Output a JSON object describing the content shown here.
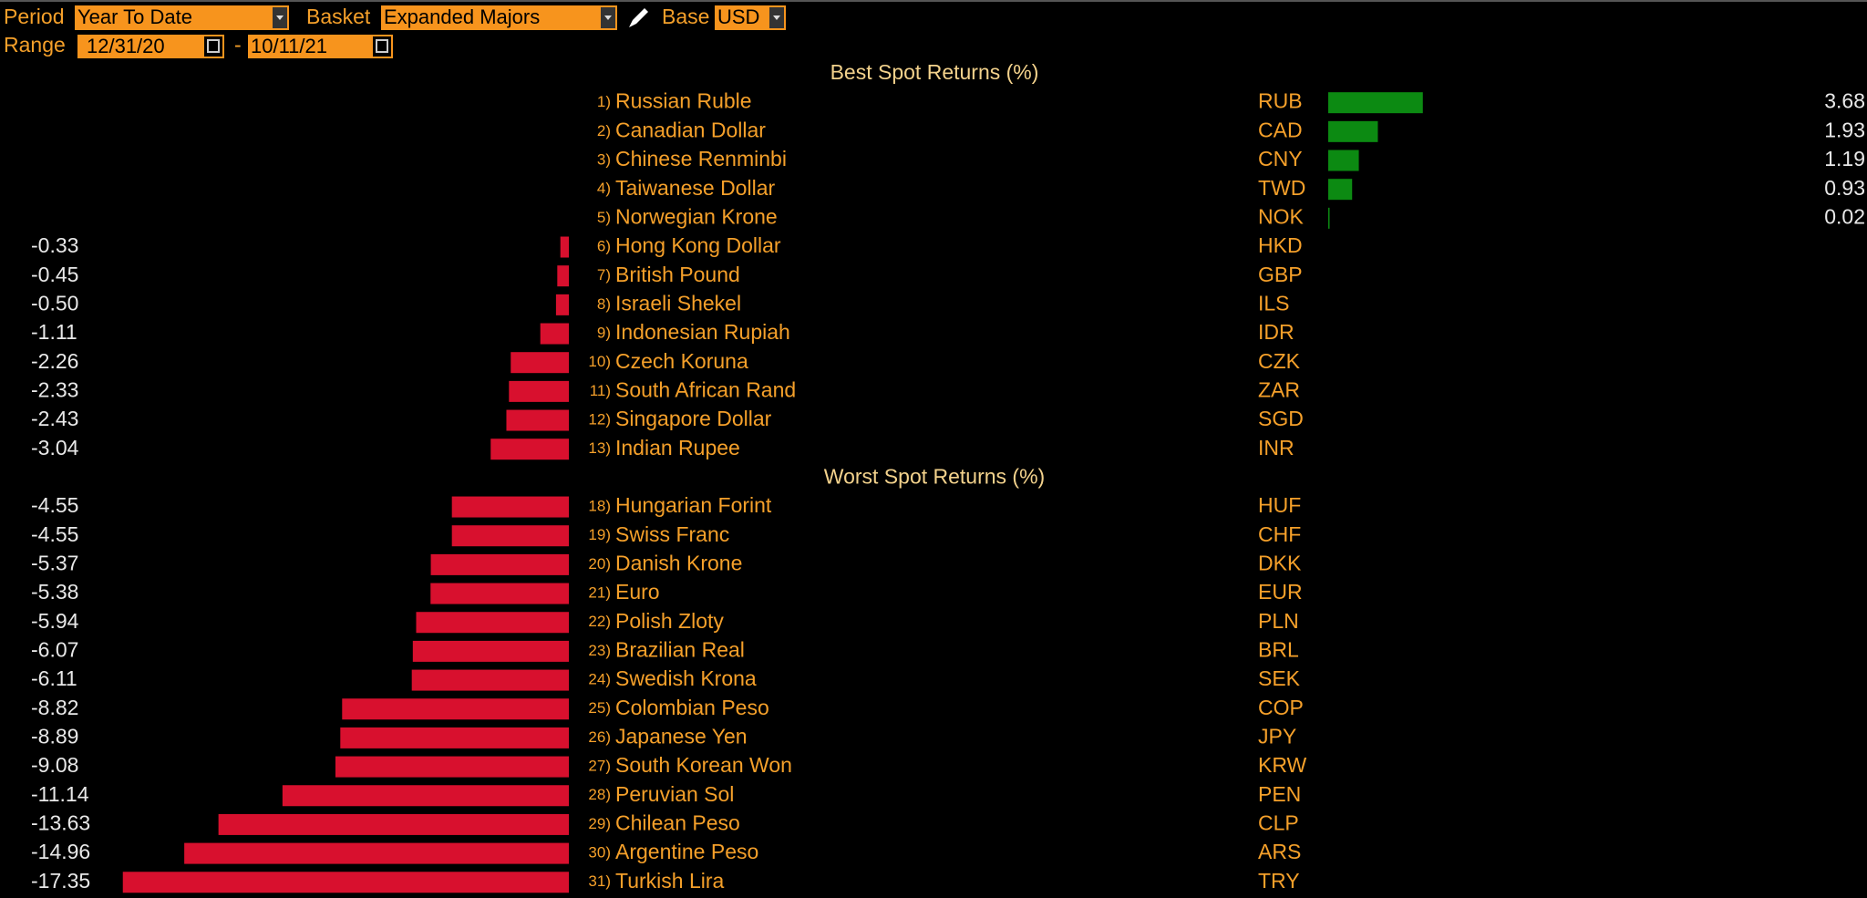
{
  "controls": {
    "period_label": "Period",
    "period": "Year To Date",
    "basket_label": "Basket",
    "basket": "Expanded Majors",
    "base_label": "Base",
    "base": "USD",
    "range_label": "Range",
    "start": "12/31/20",
    "separator": "-",
    "end": "10/11/21"
  },
  "sections": [
    {
      "title": "Best Spot Returns (%)",
      "rows": [
        {
          "rank": "1)",
          "name": "Russian Ruble",
          "code": "RUB",
          "value": 3.68
        },
        {
          "rank": "2)",
          "name": "Canadian Dollar",
          "code": "CAD",
          "value": 1.93
        },
        {
          "rank": "3)",
          "name": "Chinese Renminbi",
          "code": "CNY",
          "value": 1.19
        },
        {
          "rank": "4)",
          "name": "Taiwanese Dollar",
          "code": "TWD",
          "value": 0.93
        },
        {
          "rank": "5)",
          "name": "Norwegian Krone",
          "code": "NOK",
          "value": 0.02
        },
        {
          "rank": "6)",
          "name": "Hong Kong Dollar",
          "code": "HKD",
          "value": -0.33
        },
        {
          "rank": "7)",
          "name": "British Pound",
          "code": "GBP",
          "value": -0.45
        },
        {
          "rank": "8)",
          "name": "Israeli Shekel",
          "code": "ILS",
          "value": -0.5,
          "value_label": "-0.50"
        },
        {
          "rank": "9)",
          "name": "Indonesian Rupiah",
          "code": "IDR",
          "value": -1.11
        },
        {
          "rank": "10)",
          "name": "Czech Koruna",
          "code": "CZK",
          "value": -2.26
        },
        {
          "rank": "11)",
          "name": "South African Rand",
          "code": "ZAR",
          "value": -2.33
        },
        {
          "rank": "12)",
          "name": "Singapore Dollar",
          "code": "SGD",
          "value": -2.43
        },
        {
          "rank": "13)",
          "name": "Indian Rupee",
          "code": "INR",
          "value": -3.04
        }
      ]
    },
    {
      "title": "Worst Spot Returns (%)",
      "rows": [
        {
          "rank": "18)",
          "name": "Hungarian Forint",
          "code": "HUF",
          "value": -4.55
        },
        {
          "rank": "19)",
          "name": "Swiss Franc",
          "code": "CHF",
          "value": -4.55
        },
        {
          "rank": "20)",
          "name": "Danish Krone",
          "code": "DKK",
          "value": -5.37
        },
        {
          "rank": "21)",
          "name": "Euro",
          "code": "EUR",
          "value": -5.38
        },
        {
          "rank": "22)",
          "name": "Polish Zloty",
          "code": "PLN",
          "value": -5.94
        },
        {
          "rank": "23)",
          "name": "Brazilian Real",
          "code": "BRL",
          "value": -6.07
        },
        {
          "rank": "24)",
          "name": "Swedish Krona",
          "code": "SEK",
          "value": -6.11
        },
        {
          "rank": "25)",
          "name": "Colombian Peso",
          "code": "COP",
          "value": -8.82
        },
        {
          "rank": "26)",
          "name": "Japanese Yen",
          "code": "JPY",
          "value": -8.89
        },
        {
          "rank": "27)",
          "name": "South Korean Won",
          "code": "KRW",
          "value": -9.08
        },
        {
          "rank": "28)",
          "name": "Peruvian Sol",
          "code": "PEN",
          "value": -11.14
        },
        {
          "rank": "29)",
          "name": "Chilean Peso",
          "code": "CLP",
          "value": -13.63
        },
        {
          "rank": "30)",
          "name": "Argentine Peso",
          "code": "ARS",
          "value": -14.96
        },
        {
          "rank": "31)",
          "name": "Turkish Lira",
          "code": "TRY",
          "value": -17.35
        }
      ]
    }
  ]
}
